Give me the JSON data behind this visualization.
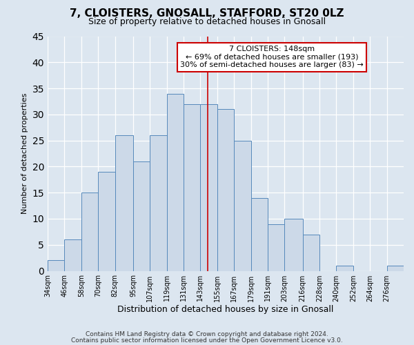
{
  "title": "7, CLOISTERS, GNOSALL, STAFFORD, ST20 0LZ",
  "subtitle": "Size of property relative to detached houses in Gnosall",
  "xlabel": "Distribution of detached houses by size in Gnosall",
  "ylabel": "Number of detached properties",
  "bar_edges": [
    34,
    46,
    58,
    70,
    82,
    95,
    107,
    119,
    131,
    143,
    155,
    167,
    179,
    191,
    203,
    216,
    228,
    240,
    252,
    264,
    276
  ],
  "bar_heights": [
    2,
    6,
    15,
    19,
    26,
    21,
    26,
    34,
    32,
    32,
    31,
    25,
    14,
    9,
    10,
    7,
    0,
    1,
    0,
    0,
    1
  ],
  "bar_color": "#ccd9e8",
  "bar_edge_color": "#5588bb",
  "tick_labels": [
    "34sqm",
    "46sqm",
    "58sqm",
    "70sqm",
    "82sqm",
    "95sqm",
    "107sqm",
    "119sqm",
    "131sqm",
    "143sqm",
    "155sqm",
    "167sqm",
    "179sqm",
    "191sqm",
    "203sqm",
    "216sqm",
    "228sqm",
    "240sqm",
    "252sqm",
    "264sqm",
    "276sqm"
  ],
  "ylim": [
    0,
    45
  ],
  "yticks": [
    0,
    5,
    10,
    15,
    20,
    25,
    30,
    35,
    40,
    45
  ],
  "red_line_x": 148,
  "annotation_title": "7 CLOISTERS: 148sqm",
  "annotation_line1": "← 69% of detached houses are smaller (193)",
  "annotation_line2": "30% of semi-detached houses are larger (83) →",
  "annotation_box_color": "#ffffff",
  "annotation_box_edgecolor": "#cc0000",
  "footer_line1": "Contains HM Land Registry data © Crown copyright and database right 2024.",
  "footer_line2": "Contains public sector information licensed under the Open Government Licence v3.0.",
  "bg_color": "#dce6f0",
  "plot_bg_color": "#dce6f0",
  "grid_color": "#ffffff",
  "title_fontsize": 11,
  "subtitle_fontsize": 9,
  "xlabel_fontsize": 9,
  "ylabel_fontsize": 8,
  "tick_fontsize": 7,
  "annotation_fontsize": 8,
  "footer_fontsize": 6.5
}
